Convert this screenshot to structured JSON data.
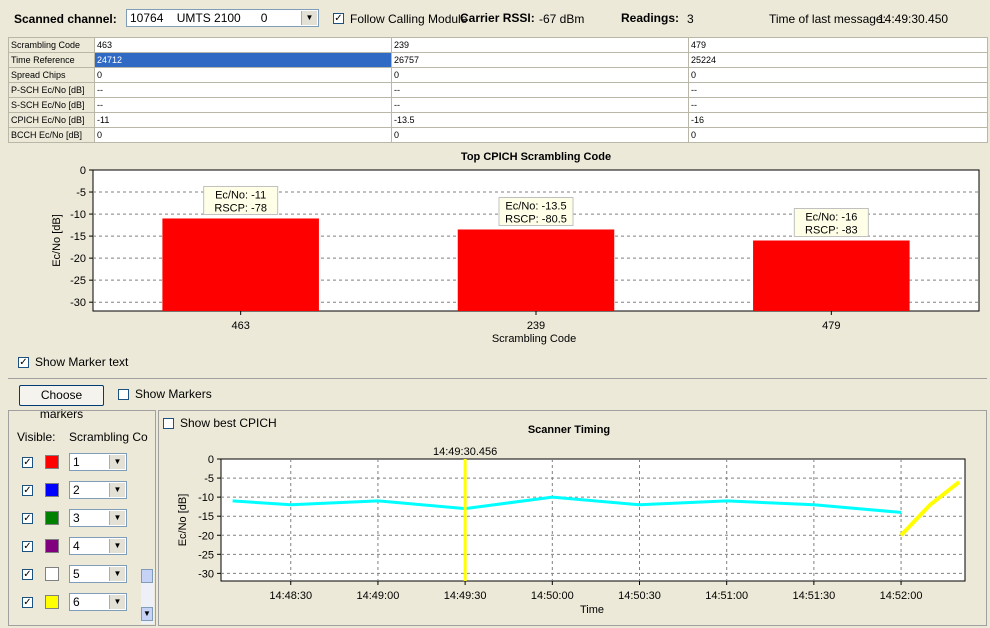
{
  "header": {
    "scanned_channel_label": "Scanned channel:",
    "channel_value": "10764    UMTS 2100      0",
    "follow_label": "Follow Calling Module",
    "follow_checked": true,
    "carrier_rssi_label": "Carrier RSSI:",
    "carrier_rssi_value": "-67 dBm",
    "readings_label": "Readings:",
    "readings_value": "3",
    "last_msg_label": "Time of last message:",
    "last_msg_value": "14:49:30.450"
  },
  "table": {
    "rows": [
      {
        "label": "Scrambling Code",
        "values": [
          "463",
          "239",
          "479"
        ]
      },
      {
        "label": "Time Reference",
        "values": [
          "24712",
          "26757",
          "25224"
        ]
      },
      {
        "label": "Spread Chips",
        "values": [
          "0",
          "0",
          "0"
        ]
      },
      {
        "label": "P-SCH Ec/No [dB]",
        "values": [
          "--",
          "--",
          "--"
        ]
      },
      {
        "label": "S-SCH Ec/No [dB]",
        "values": [
          "--",
          "--",
          "--"
        ]
      },
      {
        "label": "CPICH Ec/No [dB]",
        "values": [
          "-11",
          "-13.5",
          "-16"
        ]
      },
      {
        "label": "BCCH Ec/No [dB]",
        "values": [
          "0",
          "0",
          "0"
        ]
      }
    ]
  },
  "chart_data": [
    {
      "type": "bar",
      "title": "Top CPICH Scrambling Code",
      "xlabel": "Scrambling Code",
      "ylabel": "Ec/No [dB]",
      "categories": [
        "463",
        "239",
        "479"
      ],
      "values": [
        -11,
        -13.5,
        -16
      ],
      "annotations": [
        {
          "line1": "Ec/No: -11",
          "line2": "RSCP: -78"
        },
        {
          "line1": "Ec/No: -13.5",
          "line2": "RSCP: -80.5"
        },
        {
          "line1": "Ec/No: -16",
          "line2": "RSCP: -83"
        }
      ],
      "ylim": [
        -32,
        0
      ],
      "yticks": [
        0,
        -5,
        -10,
        -15,
        -20,
        -25,
        -30
      ],
      "color": "#ff0000",
      "grid": true
    },
    {
      "type": "line",
      "title": "Scanner Timing",
      "xlabel": "Time",
      "ylabel": "Ec/No [dB]",
      "xticks": [
        "14:48:30",
        "14:49:00",
        "14:49:30",
        "14:50:00",
        "14:50:30",
        "14:51:00",
        "14:51:30",
        "14:52:00"
      ],
      "ylim": [
        -32,
        0
      ],
      "yticks": [
        0,
        -5,
        -10,
        -15,
        -20,
        -25,
        -30
      ],
      "marker_label": "14:49:30.456",
      "series": [
        {
          "color": "#00ffff",
          "x": [
            "14:48:10",
            "14:48:30",
            "14:49:00",
            "14:49:30",
            "14:50:00",
            "14:50:30",
            "14:51:00",
            "14:51:30",
            "14:52:00"
          ],
          "y": [
            -11,
            -12,
            -11,
            -13,
            -10,
            -12,
            -11,
            -12,
            -14
          ]
        },
        {
          "color": "#ffff00",
          "x": [
            "14:52:00",
            "14:52:10",
            "14:52:20"
          ],
          "y": [
            -20,
            -12,
            -6
          ]
        }
      ],
      "grid": true
    }
  ],
  "marker_panel": {
    "show_marker_text": "Show Marker text",
    "choose_markers": "Choose markers",
    "show_markers": "Show Markers",
    "show_best_cpich": "Show best CPICH",
    "visible_header": "Visible:",
    "scrambling_header": "Scrambling Co",
    "rows": [
      {
        "color": "#ff0000",
        "value": "1"
      },
      {
        "color": "#0000ff",
        "value": "2"
      },
      {
        "color": "#008000",
        "value": "3"
      },
      {
        "color": "#800080",
        "value": "4"
      },
      {
        "color": "#ffffff",
        "value": "5"
      },
      {
        "color": "#ffff00",
        "value": "6"
      }
    ]
  }
}
